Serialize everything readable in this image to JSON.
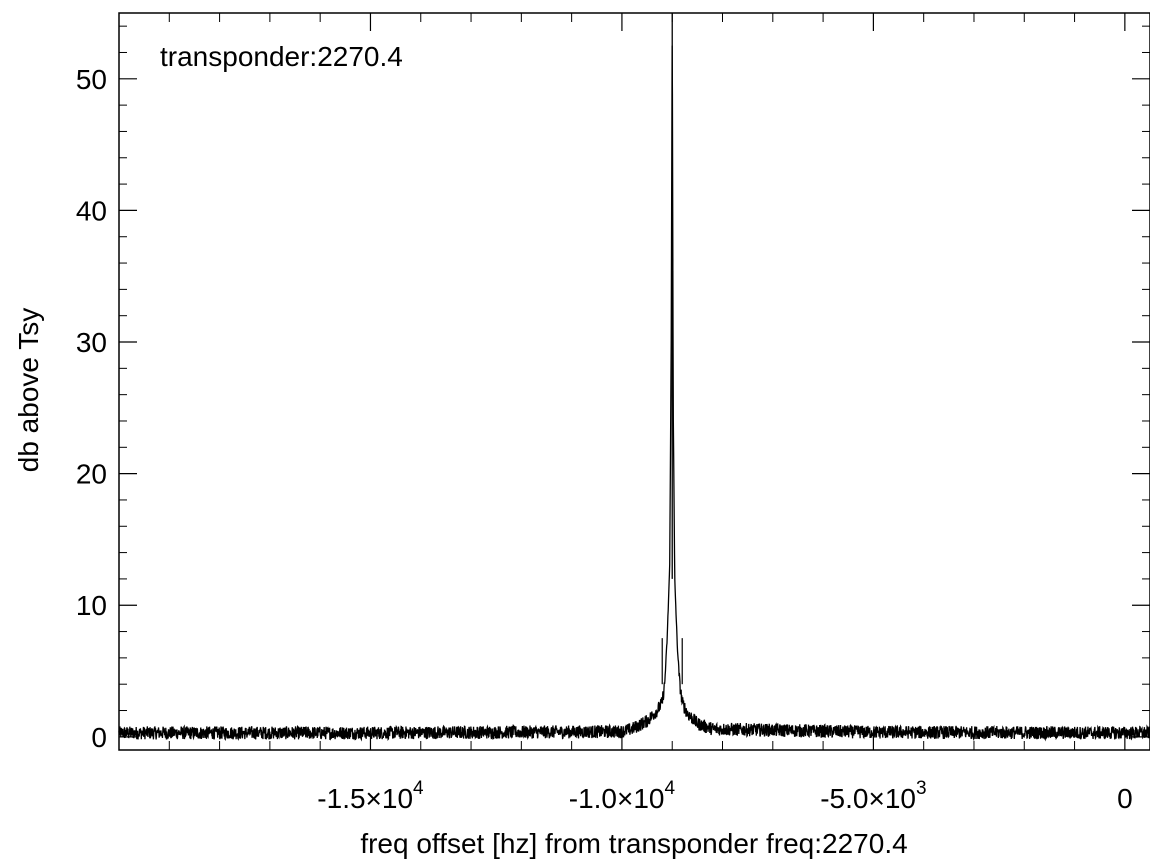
{
  "chart_data": {
    "type": "line",
    "title": "",
    "annotation": "transponder:2270.4",
    "xlabel": "freq offset [hz] from transponder freq:2270.4",
    "ylabel": "db above Tsy",
    "xlim": [
      -20000,
      500
    ],
    "ylim": [
      -1,
      55
    ],
    "x_ticks": [
      {
        "value": -15000,
        "mantissa": "-1.5×10",
        "exp": "4"
      },
      {
        "value": -10000,
        "mantissa": "-1.0×10",
        "exp": "4"
      },
      {
        "value": -5000,
        "mantissa": "-5.0×10",
        "exp": "3"
      },
      {
        "value": 0,
        "mantissa": "0",
        "exp": ""
      }
    ],
    "y_ticks": [
      0,
      10,
      20,
      30,
      40,
      50
    ],
    "grid": false,
    "series": [
      {
        "values_note": "",
        "peak": {
          "x": -9000,
          "y": 55
        },
        "x": [
          -20000,
          -15000,
          -10000,
          -9800,
          -9500,
          -9300,
          -9200,
          -9150,
          -9100,
          -9050,
          -9020,
          -9000,
          -8980,
          -8950,
          -8900,
          -8850,
          -8800,
          -8700,
          -8500,
          -8200,
          -5000,
          0,
          500
        ],
        "y": [
          0.3,
          0.3,
          0.4,
          0.6,
          1.2,
          2.0,
          2.6,
          4.0,
          7.5,
          13.0,
          30.0,
          55.0,
          25.0,
          12.0,
          7.0,
          4.0,
          2.6,
          1.8,
          1.0,
          0.6,
          0.35,
          0.3,
          0.3
        ]
      }
    ]
  }
}
